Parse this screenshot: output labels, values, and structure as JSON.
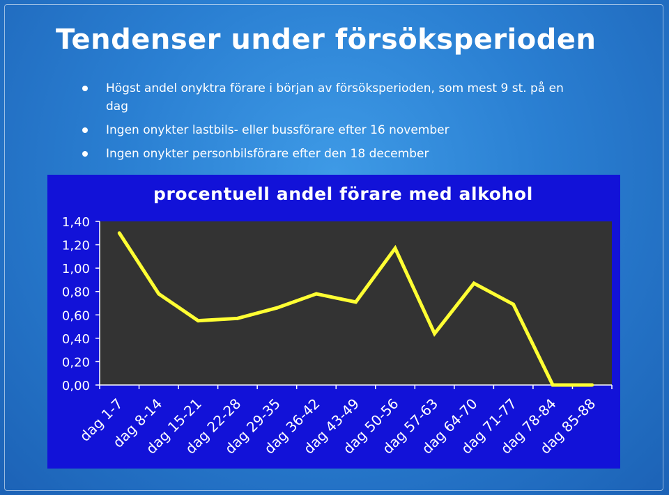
{
  "slide": {
    "title": "Tendenser under försöksperioden",
    "bullets": [
      "Högst andel onyktra förare i början av försöksperioden, som mest 9 st. på en dag",
      "Ingen onykter lastbils- eller bussförare efter 16 november",
      "Ingen onykter personbilsförare efter den 18 december"
    ]
  },
  "colors": {
    "slide_bg": "#2a7fd2",
    "chart_bg": "#1212d8",
    "plot_bg": "#333333",
    "line": "#ffff33",
    "text": "#ffffff"
  },
  "chart_data": {
    "type": "line",
    "title": "procentuell andel förare med alkohol",
    "xlabel": "",
    "ylabel": "",
    "categories": [
      "dag 1-7",
      "dag 8-14",
      "dag 15-21",
      "dag 22-28",
      "dag 29-35",
      "dag 36-42",
      "dag 43-49",
      "dag 50-56",
      "dag 57-63",
      "dag 64-70",
      "dag 71-77",
      "dag 78-84",
      "dag 85-88"
    ],
    "series": [
      {
        "values": [
          1.3,
          0.78,
          0.55,
          0.57,
          0.66,
          0.78,
          0.71,
          1.17,
          0.44,
          0.87,
          0.69,
          0.0,
          0.0
        ]
      }
    ],
    "y_ticks": [
      "0,00",
      "0,20",
      "0,40",
      "0,60",
      "0,80",
      "1,00",
      "1,20",
      "1,40"
    ],
    "ylim": [
      0,
      1.4
    ],
    "grid": false,
    "legend": "none"
  }
}
